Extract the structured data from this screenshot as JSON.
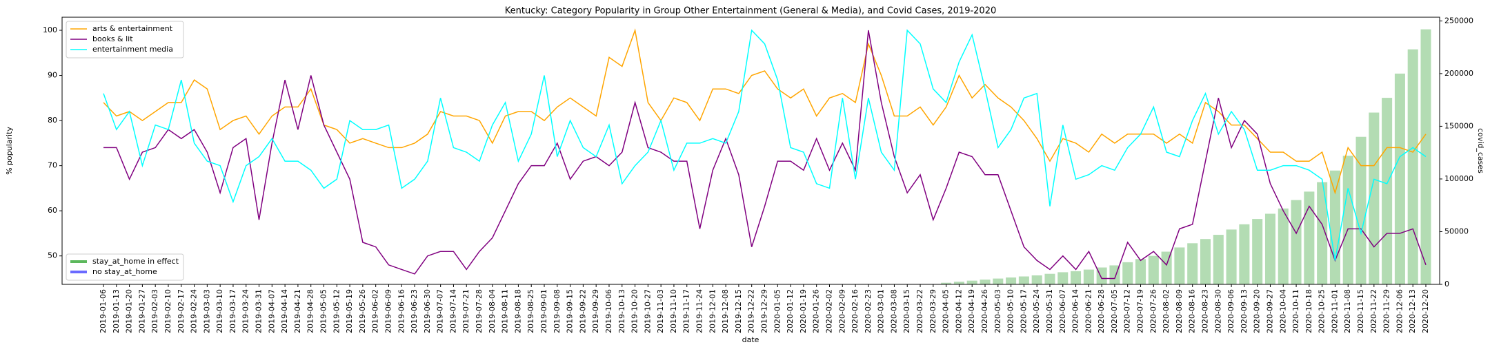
{
  "chart_data": {
    "type": "line",
    "title": "Kentucky: Category Popularity in Group Other Entertainment (General & Media), and Covid Cases, 2019-2020",
    "x_label": "date",
    "y_label": "% popularity",
    "y2_label": "covid_cases",
    "categories": [
      "2019-01-06",
      "2019-01-13",
      "2019-01-20",
      "2019-01-27",
      "2019-02-03",
      "2019-02-10",
      "2019-02-17",
      "2019-02-24",
      "2019-03-03",
      "2019-03-10",
      "2019-03-17",
      "2019-03-24",
      "2019-03-31",
      "2019-04-07",
      "2019-04-14",
      "2019-04-21",
      "2019-04-28",
      "2019-05-05",
      "2019-05-12",
      "2019-05-19",
      "2019-05-26",
      "2019-06-02",
      "2019-06-09",
      "2019-06-16",
      "2019-06-23",
      "2019-06-30",
      "2019-07-07",
      "2019-07-14",
      "2019-07-21",
      "2019-07-28",
      "2019-08-04",
      "2019-08-11",
      "2019-08-18",
      "2019-08-25",
      "2019-09-01",
      "2019-09-08",
      "2019-09-15",
      "2019-09-22",
      "2019-09-29",
      "2019-10-06",
      "2019-10-13",
      "2019-10-20",
      "2019-10-27",
      "2019-11-03",
      "2019-11-10",
      "2019-11-17",
      "2019-11-24",
      "2019-12-01",
      "2019-12-08",
      "2019-12-15",
      "2019-12-22",
      "2019-12-29",
      "2020-01-05",
      "2020-01-12",
      "2020-01-19",
      "2020-01-26",
      "2020-02-02",
      "2020-02-09",
      "2020-02-16",
      "2020-02-23",
      "2020-03-01",
      "2020-03-08",
      "2020-03-15",
      "2020-03-22",
      "2020-03-29",
      "2020-04-05",
      "2020-04-12",
      "2020-04-19",
      "2020-04-26",
      "2020-05-03",
      "2020-05-10",
      "2020-05-17",
      "2020-05-24",
      "2020-05-31",
      "2020-06-07",
      "2020-06-14",
      "2020-06-21",
      "2020-06-28",
      "2020-07-05",
      "2020-07-12",
      "2020-07-19",
      "2020-07-26",
      "2020-08-02",
      "2020-08-09",
      "2020-08-16",
      "2020-08-23",
      "2020-08-30",
      "2020-09-06",
      "2020-09-13",
      "2020-09-20",
      "2020-09-27",
      "2020-10-04",
      "2020-10-11",
      "2020-10-18",
      "2020-10-25",
      "2020-11-01",
      "2020-11-08",
      "2020-11-15",
      "2020-11-22",
      "2020-11-29",
      "2020-12-06",
      "2020-12-13",
      "2020-12-20"
    ],
    "series": [
      {
        "name": "arts & entertainment",
        "color": "#ffa500",
        "values": [
          84,
          81,
          82,
          80,
          82,
          84,
          84,
          89,
          87,
          78,
          80,
          81,
          77,
          81,
          83,
          83,
          87,
          79,
          78,
          75,
          76,
          75,
          74,
          74,
          75,
          77,
          82,
          81,
          81,
          80,
          75,
          81,
          82,
          82,
          80,
          83,
          85,
          83,
          81,
          94,
          92,
          100,
          84,
          80,
          85,
          84,
          80,
          87,
          87,
          86,
          90,
          91,
          87,
          85,
          87,
          81,
          85,
          86,
          84,
          97,
          90,
          81,
          81,
          83,
          79,
          83,
          90,
          85,
          88,
          85,
          83,
          80,
          76,
          71,
          76,
          75,
          73,
          77,
          75,
          77,
          77,
          77,
          75,
          77,
          75,
          84,
          82,
          79,
          79,
          76,
          73,
          73,
          71,
          71,
          73,
          64,
          74,
          70,
          70,
          74,
          74,
          73,
          77
        ]
      },
      {
        "name": "books & lit",
        "color": "#800080",
        "values": [
          74,
          74,
          67,
          73,
          74,
          78,
          76,
          78,
          73,
          64,
          74,
          76,
          58,
          75,
          89,
          78,
          90,
          79,
          73,
          67,
          53,
          52,
          48,
          47,
          46,
          50,
          51,
          51,
          47,
          51,
          54,
          60,
          66,
          70,
          70,
          75,
          67,
          71,
          72,
          70,
          73,
          84,
          74,
          73,
          71,
          71,
          56,
          69,
          76,
          68,
          52,
          61,
          71,
          71,
          69,
          76,
          69,
          75,
          69,
          100,
          84,
          72,
          64,
          68,
          58,
          65,
          73,
          72,
          68,
          68,
          60,
          52,
          49,
          47,
          50,
          47,
          51,
          45,
          45,
          53,
          49,
          51,
          48,
          56,
          57,
          71,
          85,
          74,
          80,
          77,
          66,
          60,
          55,
          61,
          57,
          49,
          56,
          56,
          52,
          55,
          55,
          56,
          48
        ]
      },
      {
        "name": "entertainment media",
        "color": "#00ffff",
        "values": [
          86,
          78,
          82,
          70,
          79,
          78,
          89,
          75,
          71,
          70,
          62,
          70,
          72,
          76,
          71,
          71,
          69,
          65,
          67,
          80,
          78,
          78,
          79,
          65,
          67,
          71,
          85,
          74,
          73,
          71,
          79,
          84,
          71,
          77,
          90,
          72,
          80,
          74,
          72,
          79,
          66,
          70,
          73,
          80,
          69,
          75,
          75,
          76,
          75,
          82,
          100,
          97,
          89,
          74,
          73,
          66,
          65,
          85,
          67,
          85,
          73,
          69,
          100,
          97,
          87,
          84,
          93,
          99,
          87,
          74,
          78,
          85,
          86,
          61,
          79,
          67,
          68,
          70,
          69,
          74,
          77,
          83,
          73,
          72,
          80,
          86,
          77,
          82,
          78,
          69,
          69,
          70,
          70,
          69,
          67,
          49,
          65,
          55,
          67,
          66,
          72,
          74,
          72
        ]
      },
      {
        "name": "covid_cases",
        "type": "bar",
        "axis": "y2",
        "color": "#b3dcb3",
        "values": [
          null,
          null,
          null,
          null,
          null,
          null,
          null,
          null,
          null,
          null,
          null,
          null,
          null,
          null,
          null,
          null,
          null,
          null,
          null,
          null,
          null,
          null,
          null,
          null,
          null,
          null,
          null,
          null,
          null,
          null,
          null,
          null,
          null,
          null,
          null,
          null,
          null,
          null,
          null,
          null,
          null,
          null,
          null,
          null,
          null,
          null,
          null,
          null,
          null,
          null,
          null,
          null,
          null,
          null,
          null,
          null,
          null,
          null,
          null,
          null,
          null,
          null,
          null,
          null,
          null,
          1500,
          2500,
          3500,
          4500,
          5500,
          6500,
          7500,
          8500,
          10000,
          11500,
          12500,
          14000,
          16000,
          18000,
          21000,
          24000,
          27000,
          31000,
          35000,
          39000,
          43000,
          47000,
          52000,
          57000,
          62000,
          67000,
          72000,
          80000,
          88000,
          97000,
          108000,
          122000,
          140000,
          163000,
          177000,
          200000,
          223000,
          242000
        ]
      }
    ],
    "legend2": [
      {
        "name": "stay_at_home in effect",
        "color": "#5cb85c"
      },
      {
        "name": "no stay_at_home",
        "color": "#6a6aff"
      }
    ],
    "legend": "upper left",
    "legend2_position": "lower left",
    "ylim": [
      43.7,
      102.9
    ],
    "yticks": [
      50,
      60,
      70,
      80,
      90,
      100
    ],
    "y2lim": [
      0,
      253500
    ],
    "y2ticks": [
      0,
      50000,
      100000,
      150000,
      200000,
      250000
    ]
  }
}
